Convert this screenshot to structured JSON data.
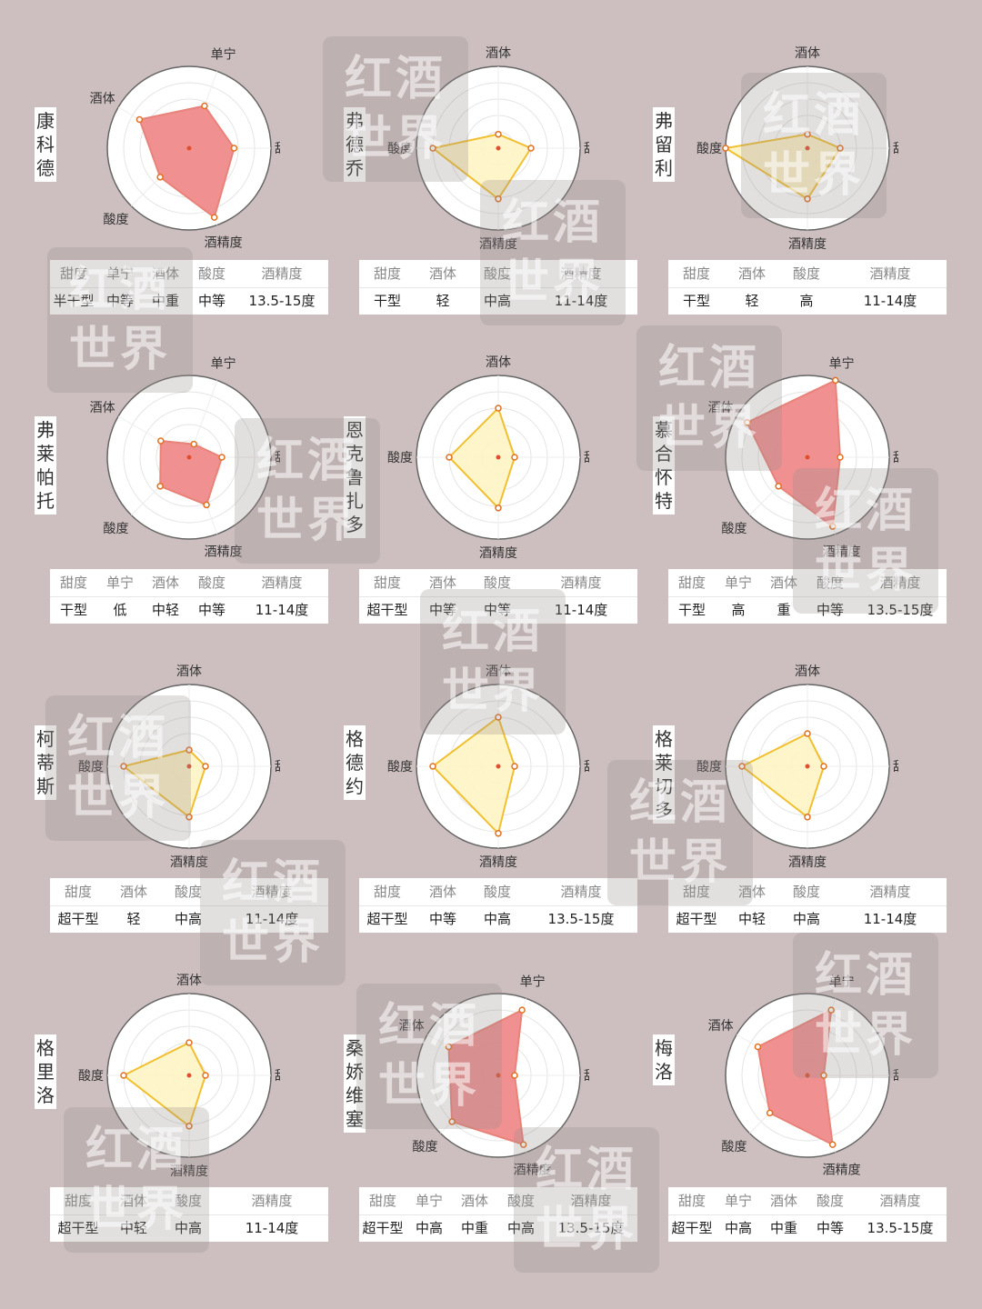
{
  "watermark_text": "红酒世界",
  "colors": {
    "background": "#cdbfbf",
    "red_fill": "#f08a8a",
    "red_stroke": "#e8837a",
    "yellow_fill": "#fff4c4",
    "yellow_stroke": "#f0c030",
    "point": "#e07020"
  },
  "chart_data": [
    {
      "type": "radar",
      "name": "康科德",
      "style": "red",
      "axes": [
        "单宁",
        "甜度",
        "酒精度",
        "酸度",
        "酒体"
      ],
      "angles": [
        -70,
        0,
        70,
        135,
        -150
      ],
      "values": [
        0.55,
        0.55,
        0.9,
        0.5,
        0.7
      ],
      "table_headers": [
        "甜度",
        "单宁",
        "酒体",
        "酸度",
        "酒精度"
      ],
      "table_values": [
        "半干型",
        "中等",
        "中重",
        "中等",
        "13.5-15度"
      ]
    },
    {
      "type": "radar",
      "name": "弗德乔",
      "style": "yellow",
      "axes": [
        "酒体",
        "甜度",
        "酒精度",
        "酸度"
      ],
      "angles": [
        -90,
        0,
        90,
        180
      ],
      "values": [
        0.17,
        0.4,
        0.62,
        0.8
      ],
      "table_headers": [
        "甜度",
        "酒体",
        "酸度",
        "酒精度"
      ],
      "table_values": [
        "干型",
        "轻",
        "中高",
        "11-14度"
      ]
    },
    {
      "type": "radar",
      "name": "弗留利",
      "style": "yellow",
      "axes": [
        "酒体",
        "甜度",
        "酒精度",
        "酸度"
      ],
      "angles": [
        -90,
        0,
        90,
        180
      ],
      "values": [
        0.17,
        0.4,
        0.62,
        1.0
      ],
      "table_headers": [
        "甜度",
        "酒体",
        "酸度",
        "酒精度"
      ],
      "table_values": [
        "干型",
        "轻",
        "高",
        "11-14度"
      ]
    },
    {
      "type": "radar",
      "name": "弗莱帕托",
      "style": "red",
      "axes": [
        "单宁",
        "甜度",
        "酒精度",
        "酸度",
        "酒体"
      ],
      "angles": [
        -70,
        0,
        70,
        135,
        -150
      ],
      "values": [
        0.17,
        0.4,
        0.62,
        0.5,
        0.4
      ],
      "table_headers": [
        "甜度",
        "单宁",
        "酒体",
        "酸度",
        "酒精度"
      ],
      "table_values": [
        "干型",
        "低",
        "中轻",
        "中等",
        "11-14度"
      ]
    },
    {
      "type": "radar",
      "name": "恩克鲁扎多",
      "style": "yellow",
      "axes": [
        "酒体",
        "甜度",
        "酒精度",
        "酸度"
      ],
      "angles": [
        -90,
        0,
        90,
        180
      ],
      "values": [
        0.6,
        0.2,
        0.62,
        0.6
      ],
      "table_headers": [
        "甜度",
        "酒体",
        "酸度",
        "酒精度"
      ],
      "table_values": [
        "超干型",
        "中等",
        "中等",
        "11-14度"
      ]
    },
    {
      "type": "radar",
      "name": "慕合怀特",
      "style": "red",
      "axes": [
        "单宁",
        "甜度",
        "酒精度",
        "酸度",
        "酒体"
      ],
      "angles": [
        -70,
        0,
        70,
        135,
        -150
      ],
      "values": [
        1.0,
        0.4,
        0.9,
        0.5,
        0.85
      ],
      "table_headers": [
        "甜度",
        "单宁",
        "酒体",
        "酸度",
        "酒精度"
      ],
      "table_values": [
        "干型",
        "高",
        "重",
        "中等",
        "13.5-15度"
      ]
    },
    {
      "type": "radar",
      "name": "柯蒂斯",
      "style": "yellow",
      "axes": [
        "酒体",
        "甜度",
        "酒精度",
        "酸度"
      ],
      "angles": [
        -90,
        0,
        90,
        180
      ],
      "values": [
        0.2,
        0.2,
        0.62,
        0.8
      ],
      "table_headers": [
        "甜度",
        "酒体",
        "酸度",
        "酒精度"
      ],
      "table_values": [
        "超干型",
        "轻",
        "中高",
        "11-14度"
      ]
    },
    {
      "type": "radar",
      "name": "格德约",
      "style": "yellow",
      "axes": [
        "酒体",
        "甜度",
        "酒精度",
        "酸度"
      ],
      "angles": [
        -90,
        0,
        90,
        180
      ],
      "values": [
        0.6,
        0.2,
        0.82,
        0.8
      ],
      "table_headers": [
        "甜度",
        "酒体",
        "酸度",
        "酒精度"
      ],
      "table_values": [
        "超干型",
        "中等",
        "中高",
        "13.5-15度"
      ]
    },
    {
      "type": "radar",
      "name": "格莱切多",
      "style": "yellow",
      "axes": [
        "酒体",
        "甜度",
        "酒精度",
        "酸度"
      ],
      "angles": [
        -90,
        0,
        90,
        180
      ],
      "values": [
        0.4,
        0.2,
        0.62,
        0.8
      ],
      "table_headers": [
        "甜度",
        "酒体",
        "酸度",
        "酒精度"
      ],
      "table_values": [
        "超干型",
        "中轻",
        "中高",
        "11-14度"
      ]
    },
    {
      "type": "radar",
      "name": "格里洛",
      "style": "yellow",
      "axes": [
        "酒体",
        "甜度",
        "酒精度",
        "酸度"
      ],
      "angles": [
        -90,
        0,
        90,
        180
      ],
      "values": [
        0.4,
        0.2,
        0.62,
        0.8
      ],
      "table_headers": [
        "甜度",
        "酒体",
        "酸度",
        "酒精度"
      ],
      "table_values": [
        "超干型",
        "中轻",
        "中高",
        "11-14度"
      ]
    },
    {
      "type": "radar",
      "name": "桑娇维塞",
      "style": "red",
      "axes": [
        "单宁",
        "甜度",
        "酒精度",
        "酸度",
        "酒体"
      ],
      "angles": [
        -70,
        0,
        70,
        135,
        -150
      ],
      "values": [
        0.85,
        0.2,
        0.9,
        0.8,
        0.7
      ],
      "table_headers": [
        "甜度",
        "单宁",
        "酒体",
        "酸度",
        "酒精度"
      ],
      "table_values": [
        "超干型",
        "中高",
        "中重",
        "中高",
        "13.5-15度"
      ]
    },
    {
      "type": "radar",
      "name": "梅洛",
      "style": "red",
      "axes": [
        "单宁",
        "甜度",
        "酒精度",
        "酸度",
        "酒体"
      ],
      "angles": [
        -70,
        0,
        70,
        135,
        -150
      ],
      "values": [
        0.85,
        0.2,
        0.9,
        0.65,
        0.7
      ],
      "table_headers": [
        "甜度",
        "单宁",
        "酒体",
        "酸度",
        "酒精度"
      ],
      "table_values": [
        "超干型",
        "中高",
        "中重",
        "中等",
        "13.5-15度"
      ]
    }
  ]
}
